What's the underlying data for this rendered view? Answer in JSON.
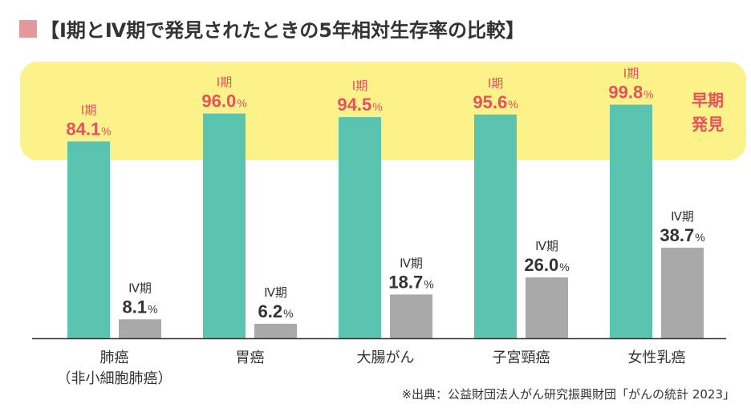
{
  "title": "【Ⅰ期とⅣ期で発見されたときの5年相対生存率の比較】",
  "band_label": [
    "早期",
    "発見"
  ],
  "source": "※出典：公益財団法人がん研究振興財団「がんの統計 2023」",
  "colors": {
    "stage1": "#5bc4b1",
    "stage4": "#a9a9a9",
    "accent": "#e8505b",
    "band": "#fbf28a",
    "title_square": "#e5979e"
  },
  "chart_data": {
    "type": "bar",
    "title": "【Ⅰ期とⅣ期で発見されたときの5年相対生存率の比較】",
    "categories": [
      [
        "肺癌",
        "（非小細胞肺癌）"
      ],
      [
        "胃癌"
      ],
      [
        "大腸がん"
      ],
      [
        "子宮頸癌"
      ],
      [
        "女性乳癌"
      ]
    ],
    "series": [
      {
        "name": "Ⅰ期",
        "values": [
          84.1,
          96.0,
          94.5,
          95.6,
          99.8
        ]
      },
      {
        "name": "Ⅳ期",
        "values": [
          8.1,
          6.2,
          18.7,
          26.0,
          38.7
        ]
      }
    ],
    "unit": "%",
    "ylim": [
      0,
      100
    ],
    "xlabel": "",
    "ylabel": "",
    "grid": false
  }
}
